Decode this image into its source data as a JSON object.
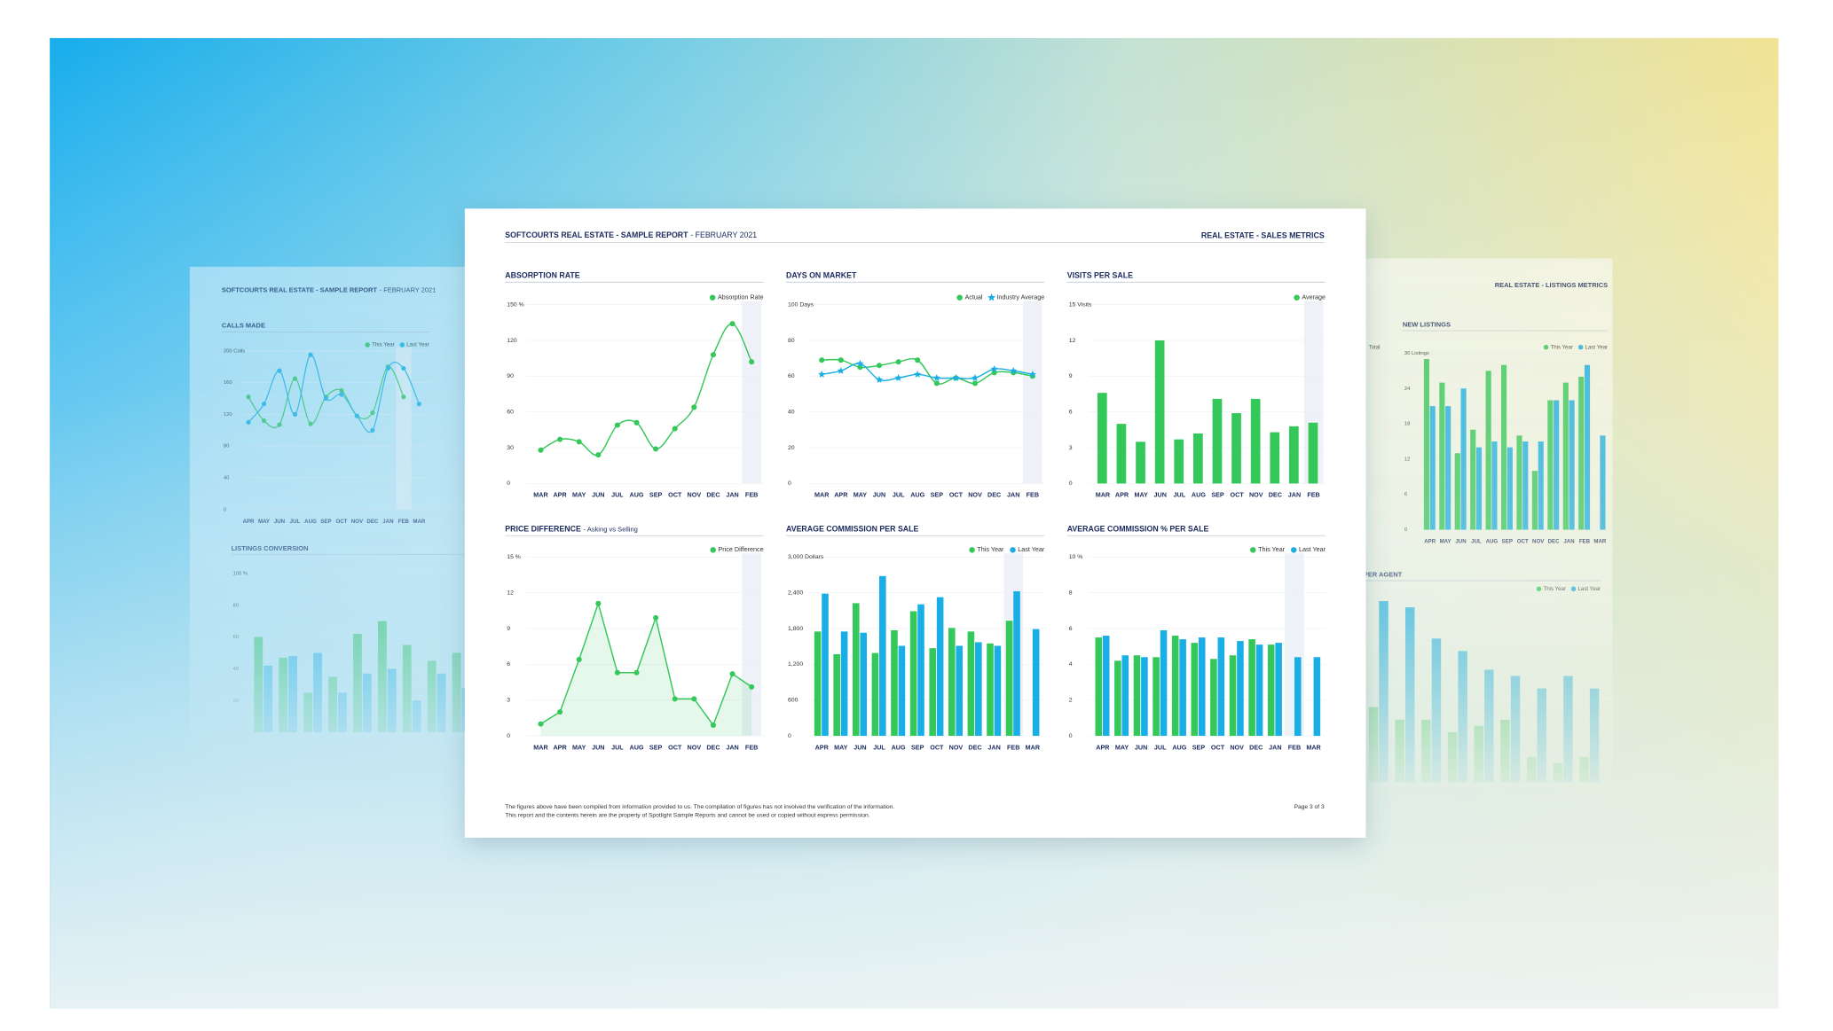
{
  "main_page": {
    "title": "SOFTCOURTS REAL ESTATE - SAMPLE REPORT",
    "subtitle": "- FEBRUARY 2021",
    "section": "REAL ESTATE - SALES METRICS",
    "footer": [
      "The figures above have been compiled from information provided to us. The compilation of figures has not involved the verification of the information.",
      "This report and the contents herein are the property of Spotlight Sample Reports and cannot be used or copied without express permission."
    ],
    "page": "Page 3 of 3"
  },
  "left_page": {
    "title": "SOFTCOURTS REAL ESTATE - SAMPLE REPORT",
    "subtitle": "- FEBRUARY 2021"
  },
  "right_page": {
    "section": "REAL ESTATE - LISTINGS METRICS",
    "fragment": "Total"
  },
  "chart_data": [
    {
      "type": "line",
      "title": "ABSORPTION RATE",
      "smooth": true,
      "legend": true,
      "grid": true,
      "highlight": "FEB",
      "categories": [
        "MAR",
        "APR",
        "MAY",
        "JUN",
        "JUL",
        "AUG",
        "SEP",
        "OCT",
        "NOV",
        "DEC",
        "JAN",
        "FEB"
      ],
      "series": [
        {
          "name": "Absorption Rate",
          "color": "#34c759",
          "values": [
            28,
            37,
            35,
            24,
            49,
            51,
            29,
            46,
            64,
            108,
            134,
            102
          ]
        }
      ],
      "ylim": [
        0,
        150
      ],
      "yticks": [
        0,
        30,
        60,
        90,
        120,
        {
          "value": 150,
          "label": "150 %"
        }
      ]
    },
    {
      "type": "line",
      "title": "DAYS ON MARKET",
      "smooth": true,
      "legend": true,
      "grid": true,
      "highlight": "FEB",
      "categories": [
        "MAR",
        "APR",
        "MAY",
        "JUN",
        "JUL",
        "AUG",
        "SEP",
        "OCT",
        "NOV",
        "DEC",
        "JAN",
        "FEB"
      ],
      "series": [
        {
          "name": "Actual",
          "color": "#34c759",
          "marker": "circle",
          "values": [
            69,
            69,
            65,
            66,
            68,
            69,
            56,
            59,
            56,
            62,
            62,
            60
          ]
        },
        {
          "name": "Industry Average",
          "color": "#1aaee6",
          "marker": "star",
          "values": [
            61,
            63,
            67,
            58,
            59,
            61,
            59,
            59,
            59,
            64,
            63,
            61
          ]
        }
      ],
      "ylim": [
        0,
        100
      ],
      "yticks": [
        0,
        20,
        40,
        60,
        80,
        {
          "value": 100,
          "label": "100 Days"
        }
      ]
    },
    {
      "type": "bar",
      "title": "VISITS PER SALE",
      "legend": true,
      "grid": true,
      "highlight": "FEB",
      "categories": [
        "MAR",
        "APR",
        "MAY",
        "JUN",
        "JUL",
        "AUG",
        "SEP",
        "OCT",
        "NOV",
        "DEC",
        "JAN",
        "FEB"
      ],
      "series": [
        {
          "name": "Average",
          "color": "#34c759",
          "values": [
            7.6,
            5,
            3.5,
            12,
            3.7,
            4.2,
            7.1,
            5.9,
            7.1,
            4.3,
            4.8,
            5.1
          ]
        }
      ],
      "ylim": [
        0,
        15
      ],
      "yticks": [
        0,
        3,
        6,
        9,
        12,
        {
          "value": 15,
          "label": "15 Visits"
        }
      ]
    },
    {
      "type": "line",
      "title": "PRICE DIFFERENCE",
      "subtitle": "- Asking vs Selling",
      "area": true,
      "legend": true,
      "grid": true,
      "highlight": "FEB",
      "categories": [
        "MAR",
        "APR",
        "MAY",
        "JUN",
        "JUL",
        "AUG",
        "SEP",
        "OCT",
        "NOV",
        "DEC",
        "JAN",
        "FEB"
      ],
      "series": [
        {
          "name": "Price Difference",
          "color": "#34c759",
          "values": [
            1,
            2,
            6.4,
            11.1,
            5.3,
            5.3,
            9.9,
            3.1,
            3.1,
            0.9,
            5.2,
            4.1
          ]
        }
      ],
      "ylim": [
        0,
        15
      ],
      "yticks": [
        0,
        3,
        6,
        9,
        12,
        {
          "value": 15,
          "label": "15 %"
        }
      ]
    },
    {
      "type": "bar",
      "title": "AVERAGE COMMISSION PER SALE",
      "legend": true,
      "grid": true,
      "highlight": "FEB",
      "categories": [
        "APR",
        "MAY",
        "JUN",
        "JUL",
        "AUG",
        "SEP",
        "OCT",
        "NOV",
        "DEC",
        "JAN",
        "FEB",
        "MAR"
      ],
      "series": [
        {
          "name": "This Year",
          "color": "#34c759",
          "values": [
            1750,
            1370,
            2225,
            1390,
            1770,
            2090,
            1470,
            1810,
            1750,
            1550,
            1930,
            null
          ]
        },
        {
          "name": "Last Year",
          "color": "#1aaee6",
          "values": [
            2385,
            1750,
            1730,
            2680,
            1510,
            2205,
            2325,
            1510,
            1570,
            1510,
            2425,
            1790
          ]
        }
      ],
      "ylim": [
        0,
        3000
      ],
      "yticks": [
        0,
        600,
        {
          "value": 1200,
          "label": "1,200"
        },
        {
          "value": 1800,
          "label": "1,800"
        },
        {
          "value": 2400,
          "label": "2,400"
        },
        {
          "value": 3000,
          "label": "3,000 Dollars"
        }
      ]
    },
    {
      "type": "bar",
      "title": "AVERAGE COMMISSION % PER SALE",
      "legend": true,
      "grid": true,
      "highlight": "FEB",
      "categories": [
        "APR",
        "MAY",
        "JUN",
        "JUL",
        "AUG",
        "SEP",
        "OCT",
        "NOV",
        "DEC",
        "JAN",
        "FEB",
        "MAR"
      ],
      "series": [
        {
          "name": "This Year",
          "color": "#34c759",
          "values": [
            5.5,
            4.2,
            4.5,
            4.4,
            5.6,
            5.2,
            4.3,
            4.5,
            5.4,
            5.1,
            null,
            null
          ]
        },
        {
          "name": "Last Year",
          "color": "#1aaee6",
          "values": [
            5.6,
            4.5,
            4.4,
            5.9,
            5.4,
            5.5,
            5.5,
            5.3,
            5.1,
            5.2,
            4.4,
            4.4
          ]
        }
      ],
      "ylim": [
        0,
        10
      ],
      "yticks": [
        0,
        2,
        4,
        6,
        8,
        {
          "value": 10,
          "label": "10 %"
        }
      ]
    },
    {
      "type": "line",
      "title": "CALLS MADE",
      "smooth": true,
      "legend": true,
      "grid": true,
      "highlight": "FEB",
      "categories": [
        "APR",
        "MAY",
        "JUN",
        "JUL",
        "AUG",
        "SEP",
        "OCT",
        "NOV",
        "DEC",
        "JAN",
        "FEB",
        "MAR"
      ],
      "series": [
        {
          "name": "This Year",
          "color": "#34c759",
          "values": [
            142,
            112,
            107,
            165,
            108,
            142,
            150,
            118,
            122,
            180,
            142,
            null
          ]
        },
        {
          "name": "Last Year",
          "color": "#1aaee6",
          "values": [
            110,
            133,
            175,
            120,
            195,
            140,
            145,
            118,
            100,
            178,
            178,
            133
          ]
        }
      ],
      "ylim": [
        0,
        200
      ],
      "yticks": [
        0,
        40,
        80,
        120,
        160,
        {
          "value": 200,
          "label": "200 Calls"
        }
      ]
    },
    {
      "type": "bar",
      "title": "LISTINGS CONVERSION",
      "grid": false,
      "categories": [
        null,
        null,
        null,
        null,
        null,
        null,
        null,
        null,
        null
      ],
      "series": [
        {
          "name": "This Year",
          "color": "#34c759",
          "values": [
            60,
            47,
            25,
            35,
            62,
            70,
            55,
            45,
            50
          ]
        },
        {
          "name": "Last Year",
          "color": "#1aaee6",
          "values": [
            42,
            48,
            50,
            25,
            37,
            40,
            20,
            37,
            28
          ]
        }
      ],
      "ylim": [
        0,
        100
      ],
      "yticks": [
        20,
        40,
        60,
        80,
        {
          "value": 100,
          "label": "100 %"
        }
      ]
    },
    {
      "type": "bar",
      "title": "NEW LISTINGS",
      "legend": true,
      "grid": true,
      "categories": [
        "APR",
        "MAY",
        "JUN",
        "JUL",
        "AUG",
        "SEP",
        "OCT",
        "NOV",
        "DEC",
        "JAN",
        "FEB",
        "MAR"
      ],
      "series": [
        {
          "name": "This Year",
          "color": "#34c759",
          "values": [
            29,
            25,
            13,
            17,
            27,
            28,
            16,
            10,
            22,
            25,
            26,
            null
          ]
        },
        {
          "name": "Last Year",
          "color": "#1aaee6",
          "values": [
            21,
            21,
            24,
            14,
            15,
            14,
            15,
            15,
            22,
            22,
            28,
            16
          ]
        }
      ],
      "ylim": [
        0,
        30
      ],
      "yticks": [
        0,
        6,
        12,
        18,
        24,
        {
          "value": 30,
          "label": "30 Listings"
        }
      ]
    },
    {
      "type": "bar",
      "title": "PER AGENT",
      "legend": true,
      "grid": false,
      "categories": [
        null,
        null,
        null,
        null,
        null,
        null,
        null,
        null,
        null
      ],
      "series": [
        {
          "name": "This Year",
          "color": "#34c759",
          "values": [
            12,
            10,
            10,
            8,
            9,
            10,
            4,
            3,
            4
          ]
        },
        {
          "name": "Last Year",
          "color": "#1aaee6",
          "values": [
            29,
            28,
            23,
            21,
            18,
            17,
            15,
            17,
            15
          ]
        }
      ],
      "ylim": [
        0,
        30
      ]
    }
  ]
}
